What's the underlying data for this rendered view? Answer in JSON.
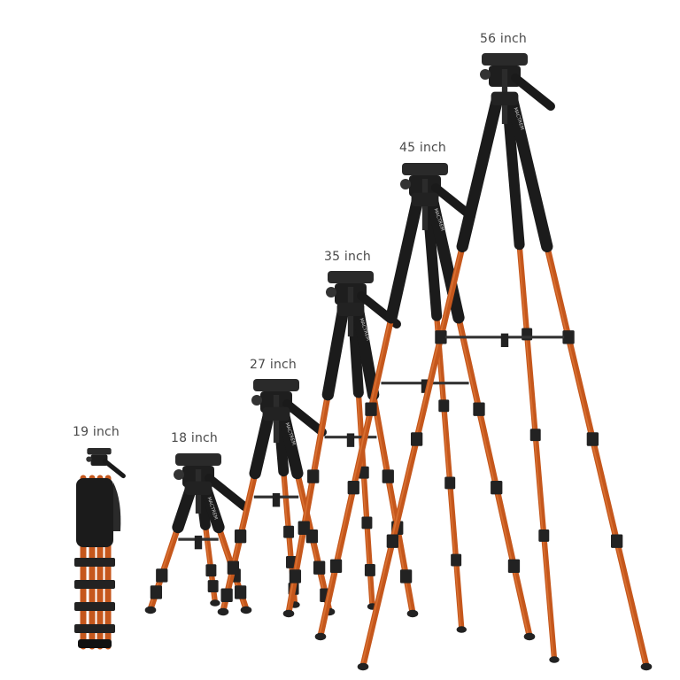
{
  "product": {
    "brand_print": "MACTREM"
  },
  "labels": [
    {
      "key": "19",
      "text": "19 inch"
    },
    {
      "key": "18",
      "text": "18 inch"
    },
    {
      "key": "27",
      "text": "27 inch"
    },
    {
      "key": "35",
      "text": "35 inch"
    },
    {
      "key": "45",
      "text": "45 inch"
    },
    {
      "key": "56",
      "text": "56 inch"
    }
  ],
  "colors": {
    "leg_orange": "#c5571c",
    "leg_highlight": "#e07a3a",
    "grip_black": "#1b1b1b",
    "clamp_black": "#222222",
    "background": "#ffffff",
    "label_gray": "#4a4a4a"
  }
}
